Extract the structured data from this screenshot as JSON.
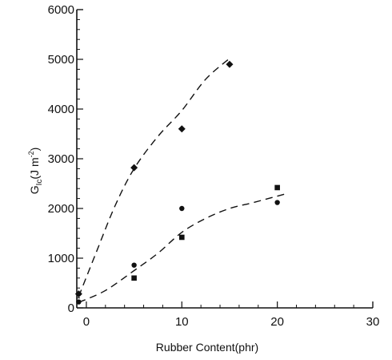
{
  "chart_data": {
    "type": "scatter",
    "xlabel": "Rubber Content(phr)",
    "ylabel_main": "G",
    "ylabel_sub": "Ic",
    "ylabel_units": "(J m",
    "ylabel_exp": "-2",
    "ylabel_close": ")",
    "xlim": [
      -1,
      30
    ],
    "ylim": [
      0,
      6000
    ],
    "x_ticks": [
      0,
      10,
      20,
      30
    ],
    "x_tick_labels": [
      "0",
      "10",
      "20",
      "30"
    ],
    "y_ticks": [
      0,
      1000,
      2000,
      3000,
      4000,
      5000,
      6000
    ],
    "y_tick_labels": [
      "0",
      "1000",
      "2000",
      "3000",
      "4000",
      "5000",
      "6000"
    ],
    "grid": false,
    "legend": "none",
    "series": [
      {
        "marker": "diamond",
        "points": [
          [
            -0.8,
            280
          ],
          [
            5,
            2820
          ],
          [
            10,
            3600
          ],
          [
            15,
            4900
          ]
        ],
        "fit_curve": [
          [
            -0.8,
            230
          ],
          [
            1,
            1100
          ],
          [
            3,
            2050
          ],
          [
            5,
            2800
          ],
          [
            7.5,
            3450
          ],
          [
            10,
            3970
          ],
          [
            12.5,
            4600
          ],
          [
            15.2,
            5050
          ]
        ]
      },
      {
        "marker": "circle",
        "points": [
          [
            -0.8,
            120
          ],
          [
            5,
            860
          ],
          [
            10,
            2000
          ],
          [
            20,
            2120
          ]
        ],
        "fit_curve": [
          [
            -0.8,
            110
          ],
          [
            2,
            350
          ],
          [
            5,
            750
          ],
          [
            7.5,
            1100
          ],
          [
            10,
            1520
          ],
          [
            12.5,
            1800
          ],
          [
            15,
            2000
          ],
          [
            17.5,
            2120
          ],
          [
            21,
            2300
          ]
        ]
      },
      {
        "marker": "square",
        "points": [
          [
            5,
            600
          ],
          [
            10,
            1420
          ],
          [
            20,
            2420
          ]
        ],
        "fit_curve": []
      }
    ]
  }
}
